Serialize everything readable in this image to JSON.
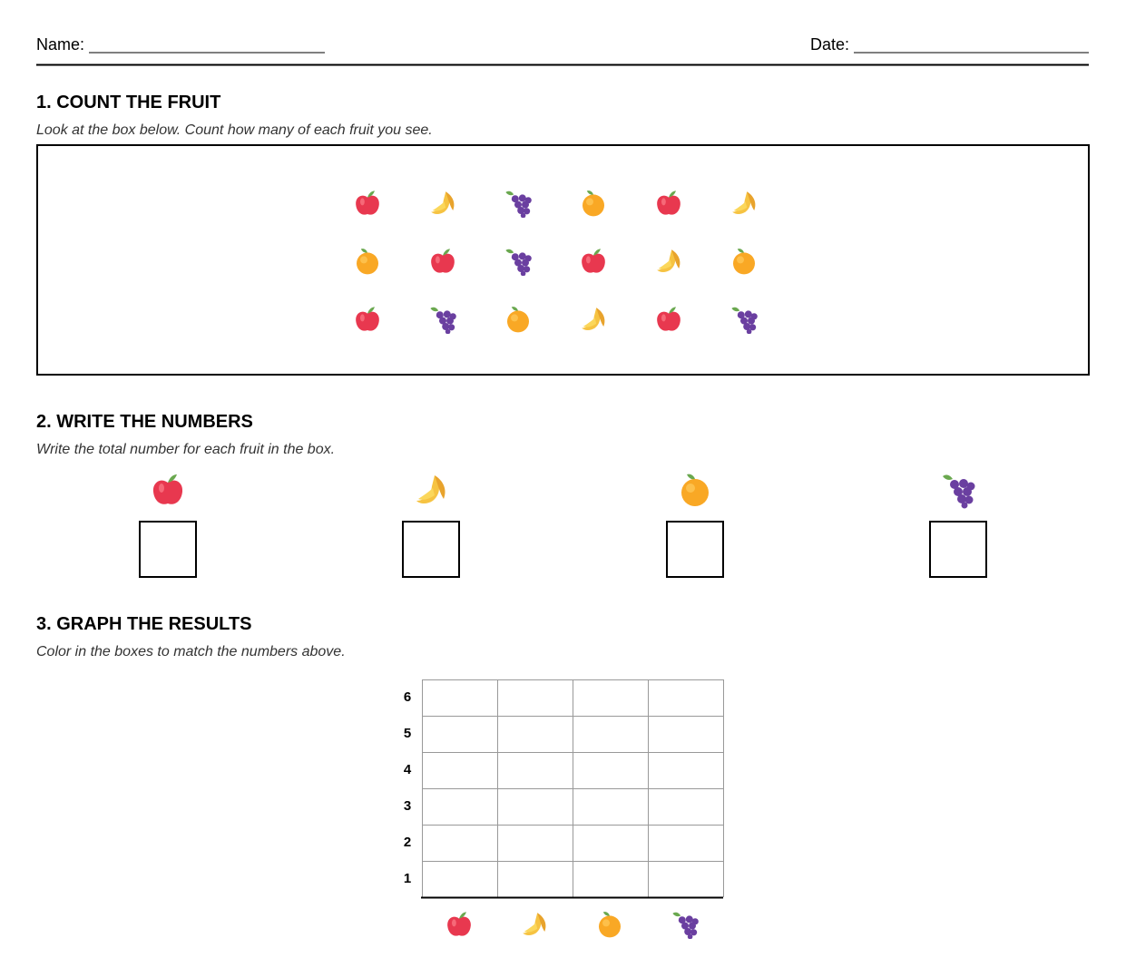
{
  "header": {
    "name_label": "Name:",
    "date_label": "Date:"
  },
  "sections": [
    {
      "title": "1. COUNT THE FRUIT",
      "instruction": "Look at the box below. Count how many of each fruit you see."
    },
    {
      "title": "2. WRITE THE NUMBERS",
      "instruction": "Write the total number for each fruit in the box."
    },
    {
      "title": "3. GRAPH THE RESULTS",
      "instruction": "Color in the boxes to match the numbers above."
    }
  ],
  "graph": {
    "row_labels": [
      6,
      5,
      4,
      3,
      2,
      1
    ]
  }
}
